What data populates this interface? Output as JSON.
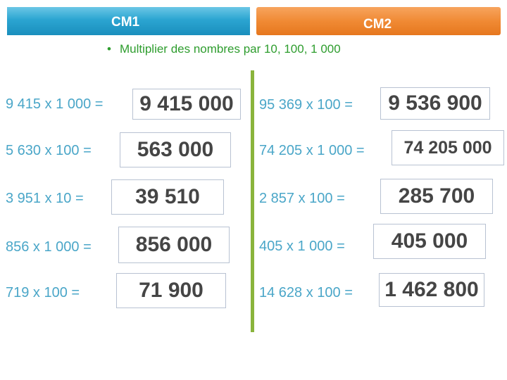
{
  "tabs": {
    "cm1": "CM1",
    "cm2": "CM2"
  },
  "subtitle": {
    "bullet": "•",
    "text": "Multiplier des nombres par 10, 100, 1 000"
  },
  "left": [
    {
      "expr": "9 415 x 1 000 =",
      "answer": "9 415 000"
    },
    {
      "expr": "5 630 x 100 =",
      "answer": "563 000"
    },
    {
      "expr": "3 951 x 10 =",
      "answer": "39 510"
    },
    {
      "expr": "856 x 1 000 =",
      "answer": "856 000"
    },
    {
      "expr": "719 x 100 =",
      "answer": "71 900"
    }
  ],
  "right": [
    {
      "expr": "95 369 x 100 =",
      "answer": "9 536 900"
    },
    {
      "expr": "74 205 x 1 000 =",
      "answer": "74 205 000"
    },
    {
      "expr": "2 857 x  100 =",
      "answer": "285 700"
    },
    {
      "expr": "405 x 1 000 =",
      "answer": "405 000"
    },
    {
      "expr": "14 628 x 100 =",
      "answer": "1 462 800"
    }
  ]
}
